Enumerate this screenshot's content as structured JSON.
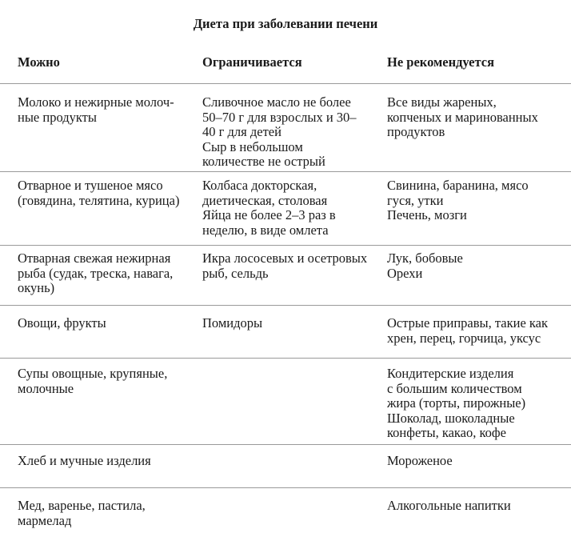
{
  "title": "Диета при заболевании печени",
  "headers": [
    "Можно",
    "Ограничивается",
    "Не рекомендуется"
  ],
  "rows": [
    [
      [
        "Молоко и нежирные молоч-",
        "ные продукты"
      ],
      [
        "Сливочное масло не более",
        "50–70 г для взрослых и 30–",
        "40 г для детей",
        "Сыр в небольшом",
        "количестве не острый"
      ],
      [
        "Все виды жареных,",
        "копченых и маринованных",
        "продуктов"
      ]
    ],
    [
      [
        "Отварное и тушеное мясо",
        "(говядина, телятина, курица)"
      ],
      [
        "Колбаса докторская,",
        "диетическая, столовая",
        "Яйца не более 2–3 раз в",
        "неделю, в виде омлета"
      ],
      [
        "Свинина, баранина, мясо",
        "гуся, утки",
        "Печень, мозги"
      ]
    ],
    [
      [
        "Отварная свежая нежирная",
        "рыба (судак, треска, навага,",
        "окунь)"
      ],
      [
        "Икра лососевых и осетровых",
        "рыб, сельдь"
      ],
      [
        "Лук, бобовые",
        "Орехи"
      ]
    ],
    [
      [
        "Овощи, фрукты"
      ],
      [
        "Помидоры"
      ],
      [
        "Острые приправы, такие как",
        "хрен, перец, горчица, уксус"
      ]
    ],
    [
      [
        "Супы овощные, крупяные,",
        "молочные"
      ],
      [],
      [
        "Кондитерские изделия",
        "с большим количеством",
        "жира (торты, пирожные)",
        "Шоколад, шоколадные",
        "конфеты, какао, кофе"
      ]
    ],
    [
      [
        "Хлеб и мучные изделия"
      ],
      [],
      [
        "Мороженое"
      ]
    ],
    [
      [
        "Мед, варенье, пастила,",
        "мармелад"
      ],
      [],
      [
        "Алкогольные напитки"
      ]
    ]
  ]
}
